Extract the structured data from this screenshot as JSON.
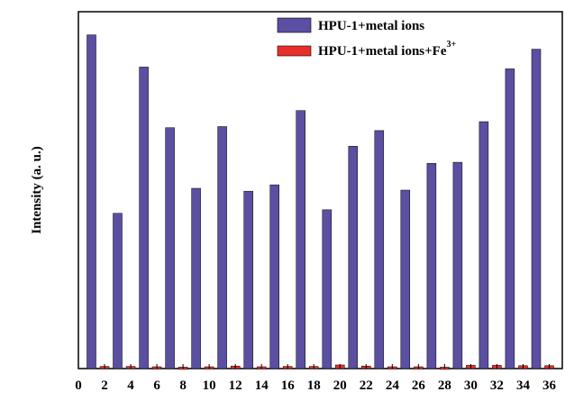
{
  "chart_data": {
    "type": "bar",
    "title": "",
    "xlabel": "",
    "ylabel": "Intensity (a. u.)",
    "x_ticks": [
      "0",
      "2",
      "4",
      "6",
      "8",
      "10",
      "12",
      "14",
      "16",
      "18",
      "20",
      "22",
      "24",
      "26",
      "28",
      "30",
      "32",
      "34",
      "36"
    ],
    "xlim": [
      0,
      37
    ],
    "ylim": [
      0,
      1.0
    ],
    "y_ticks_shown": false,
    "grid": false,
    "legend_position": "top-right",
    "series": [
      {
        "name": "HPU-1+metal ions",
        "color": "#5b4fa1",
        "x": [
          1,
          3,
          5,
          7,
          9,
          11,
          13,
          15,
          17,
          19,
          21,
          23,
          25,
          27,
          29,
          31,
          33,
          35
        ],
        "values": [
          0.935,
          0.435,
          0.845,
          0.675,
          0.505,
          0.678,
          0.497,
          0.515,
          0.723,
          0.445,
          0.623,
          0.667,
          0.5,
          0.575,
          0.578,
          0.692,
          0.84,
          0.895
        ]
      },
      {
        "name": "HPU-1+metal ions+Fe",
        "name_superscript": "3+",
        "color": "#e8302a",
        "x": [
          2,
          4,
          6,
          8,
          10,
          12,
          14,
          16,
          18,
          20,
          22,
          24,
          26,
          28,
          30,
          32,
          34,
          36
        ],
        "values": [
          0.006,
          0.006,
          0.005,
          0.004,
          0.005,
          0.007,
          0.005,
          0.006,
          0.006,
          0.01,
          0.007,
          0.005,
          0.005,
          0.004,
          0.009,
          0.009,
          0.008,
          0.008
        ]
      }
    ]
  }
}
